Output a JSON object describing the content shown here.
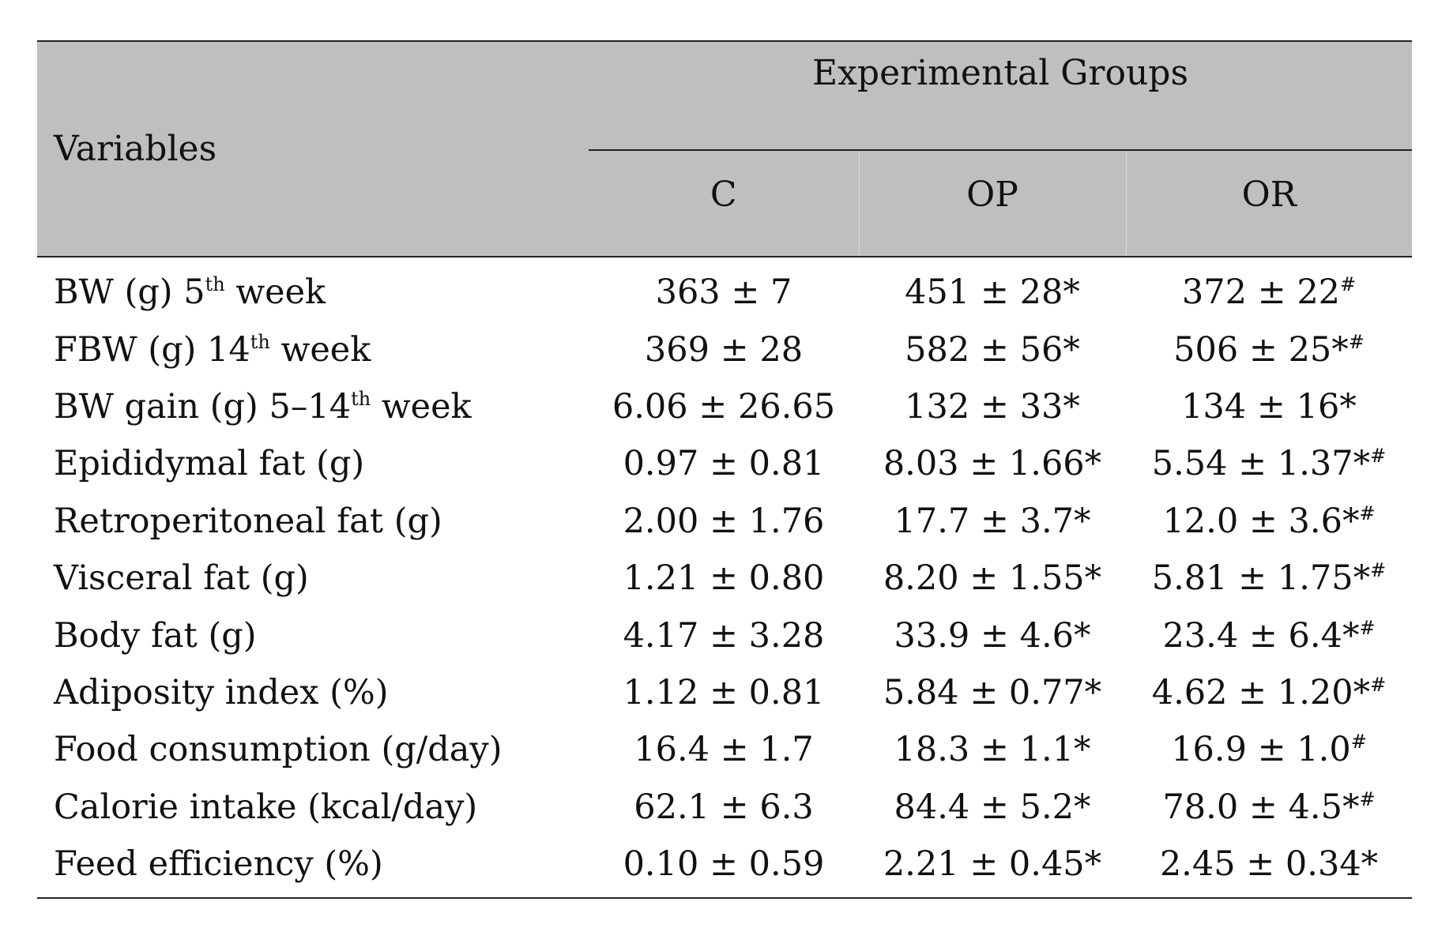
{
  "table": {
    "header": {
      "variables": "Variables",
      "group_title": "Experimental Groups",
      "groups": [
        "C",
        "OP",
        "OR"
      ]
    },
    "rows": [
      {
        "label": "BW (g) 5",
        "label_sup": "th",
        "label_suffix": " week",
        "cells": [
          {
            "value": "363 ± 7",
            "mark": ""
          },
          {
            "value": "451 ± 28*",
            "mark": ""
          },
          {
            "value": "372 ± 22",
            "mark": "#"
          }
        ]
      },
      {
        "label": "FBW (g) 14",
        "label_sup": "th",
        "label_suffix": " week",
        "cells": [
          {
            "value": "369 ± 28",
            "mark": ""
          },
          {
            "value": "582 ± 56*",
            "mark": ""
          },
          {
            "value": "506 ± 25*",
            "mark": "#"
          }
        ]
      },
      {
        "label": "BW gain (g) 5–14",
        "label_sup": "th",
        "label_suffix": " week",
        "cells": [
          {
            "value": "6.06 ± 26.65",
            "mark": ""
          },
          {
            "value": "132 ± 33*",
            "mark": ""
          },
          {
            "value": "134 ± 16*",
            "mark": ""
          }
        ]
      },
      {
        "label": "Epididymal fat (g)",
        "label_sup": "",
        "label_suffix": "",
        "cells": [
          {
            "value": "0.97 ± 0.81",
            "mark": ""
          },
          {
            "value": "8.03 ± 1.66*",
            "mark": ""
          },
          {
            "value": "5.54 ± 1.37*",
            "mark": "#"
          }
        ]
      },
      {
        "label": "Retroperitoneal fat (g)",
        "label_sup": "",
        "label_suffix": "",
        "cells": [
          {
            "value": "2.00 ± 1.76",
            "mark": ""
          },
          {
            "value": "17.7 ± 3.7*",
            "mark": ""
          },
          {
            "value": "12.0 ± 3.6*",
            "mark": "#"
          }
        ]
      },
      {
        "label": "Visceral fat (g)",
        "label_sup": "",
        "label_suffix": "",
        "cells": [
          {
            "value": "1.21 ± 0.80",
            "mark": ""
          },
          {
            "value": "8.20 ± 1.55*",
            "mark": ""
          },
          {
            "value": "5.81 ± 1.75*",
            "mark": "#"
          }
        ]
      },
      {
        "label": "Body fat (g)",
        "label_sup": "",
        "label_suffix": "",
        "cells": [
          {
            "value": "4.17 ± 3.28",
            "mark": ""
          },
          {
            "value": "33.9 ± 4.6*",
            "mark": ""
          },
          {
            "value": "23.4 ± 6.4*",
            "mark": "#"
          }
        ]
      },
      {
        "label": "Adiposity index (%)",
        "label_sup": "",
        "label_suffix": "",
        "cells": [
          {
            "value": "1.12 ± 0.81",
            "mark": ""
          },
          {
            "value": "5.84 ± 0.77*",
            "mark": ""
          },
          {
            "value": "4.62 ± 1.20*",
            "mark": "#"
          }
        ]
      },
      {
        "label": "Food consumption (g/day)",
        "label_sup": "",
        "label_suffix": "",
        "cells": [
          {
            "value": "16.4 ± 1.7",
            "mark": ""
          },
          {
            "value": "18.3 ± 1.1*",
            "mark": ""
          },
          {
            "value": "16.9 ± 1.0",
            "mark": "#"
          }
        ]
      },
      {
        "label": "Calorie intake (kcal/day)",
        "label_sup": "",
        "label_suffix": "",
        "cells": [
          {
            "value": "62.1 ± 6.3",
            "mark": ""
          },
          {
            "value": "84.4 ± 5.2*",
            "mark": ""
          },
          {
            "value": "78.0 ± 4.5*",
            "mark": "#"
          }
        ]
      },
      {
        "label": "Feed efficiency (%)",
        "label_sup": "",
        "label_suffix": "",
        "cells": [
          {
            "value": "0.10 ± 0.59",
            "mark": ""
          },
          {
            "value": "2.21 ± 0.45*",
            "mark": ""
          },
          {
            "value": "2.45 ± 0.34*",
            "mark": ""
          }
        ]
      }
    ]
  }
}
